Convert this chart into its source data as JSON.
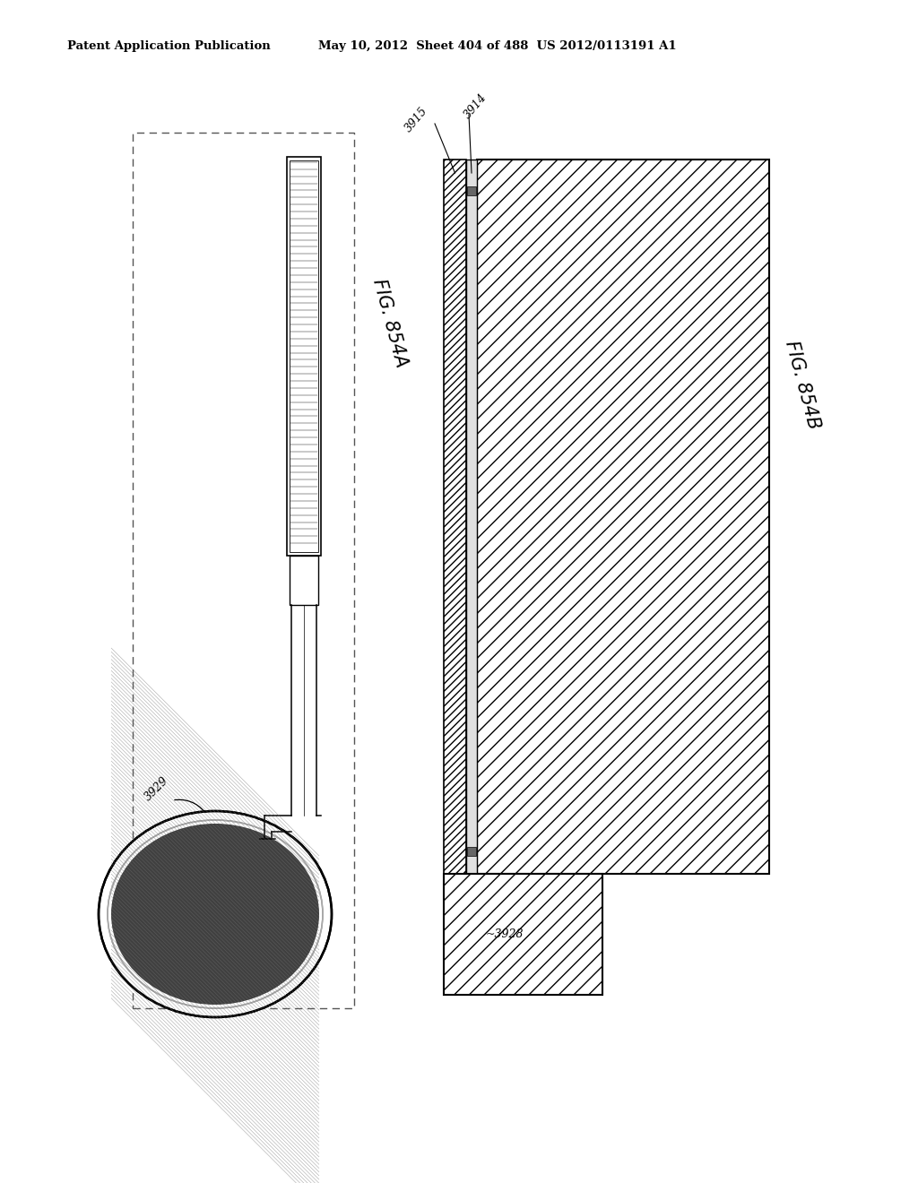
{
  "bg_color": "#ffffff",
  "header_left": "Patent Application Publication",
  "header_right": "May 10, 2012  Sheet 404 of 488  US 2012/0113191 A1",
  "fig_A_label": "FIG. 854A",
  "fig_B_label": "FIG. 854B",
  "label_3929": "3929",
  "label_3914": "3914",
  "label_3915": "3915",
  "label_3928": "~3928"
}
